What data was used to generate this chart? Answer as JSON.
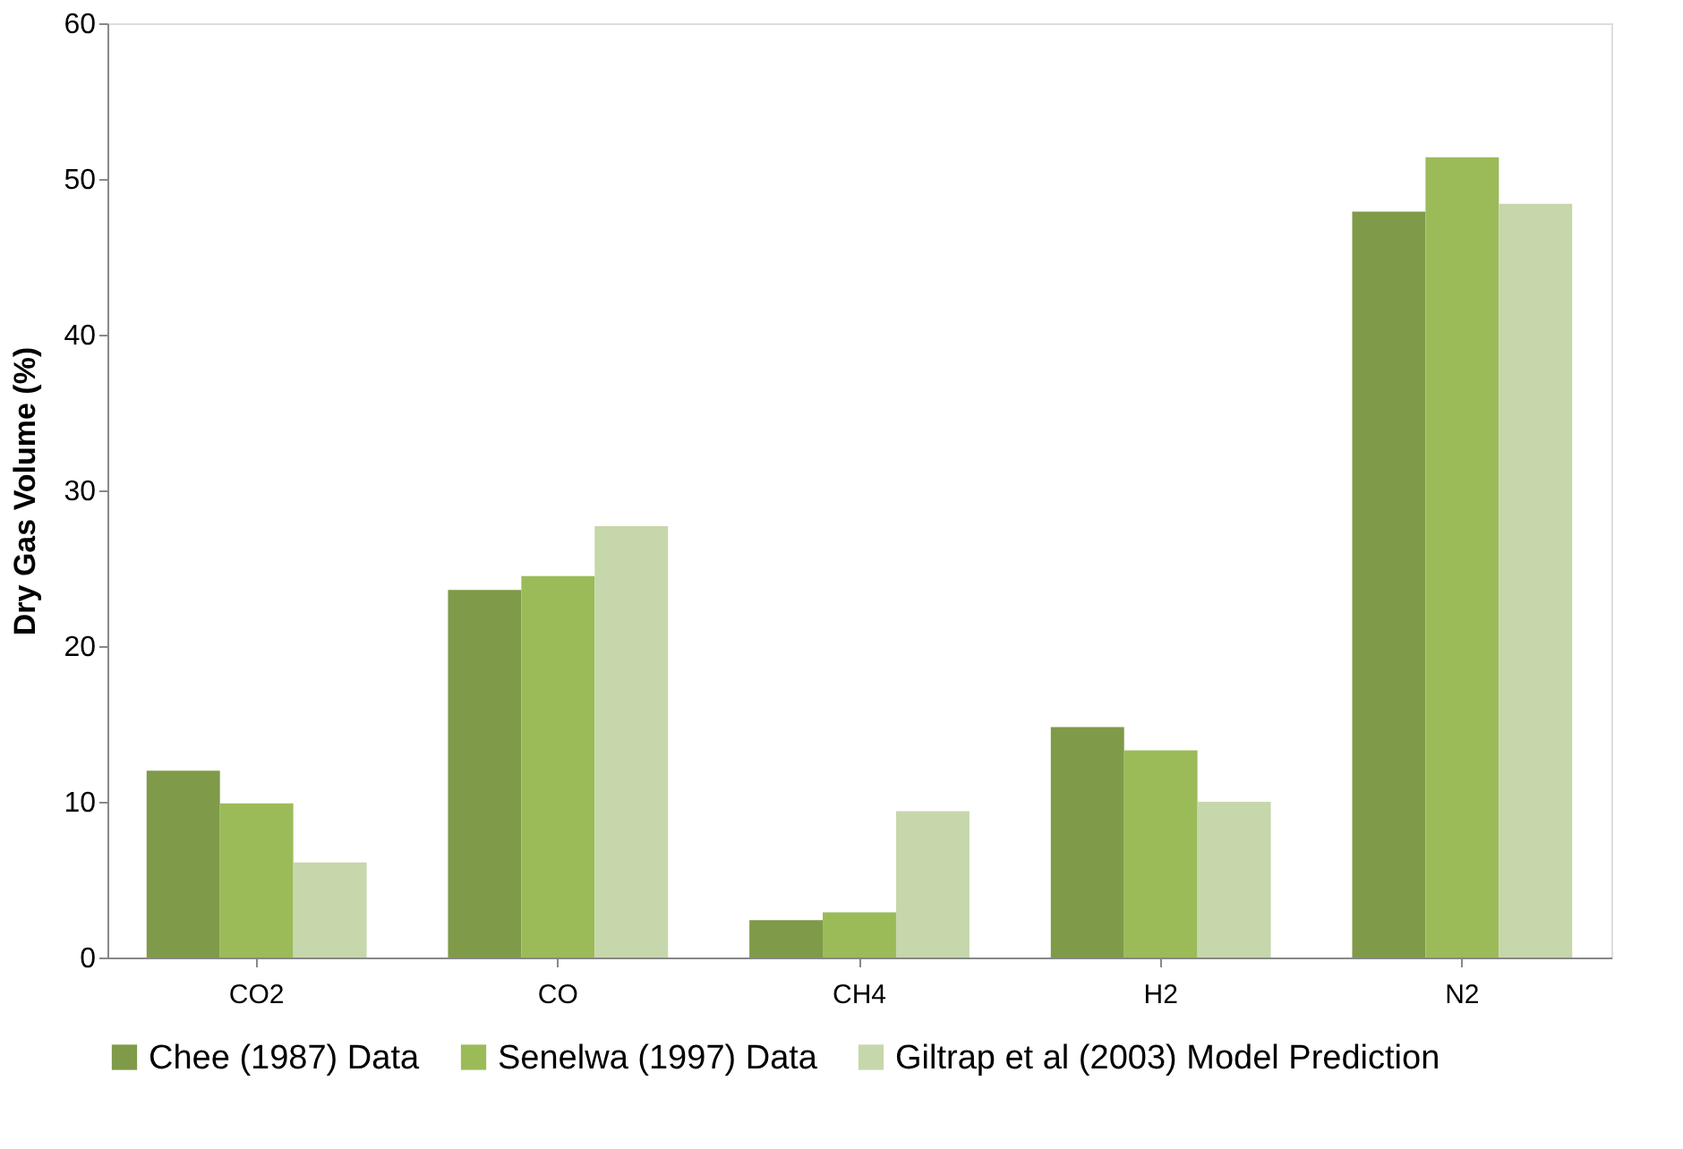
{
  "chart_data": {
    "type": "bar",
    "ylabel": "Dry Gas Volume (%)",
    "categories": [
      "CO2",
      "CO",
      "CH4",
      "H2",
      "N2"
    ],
    "series": [
      {
        "name": "Chee (1987) Data",
        "color": "#7f9a48",
        "values": [
          12.0,
          23.6,
          2.4,
          14.8,
          47.9
        ]
      },
      {
        "name": "Senelwa (1997) Data",
        "color": "#9bbb59",
        "values": [
          9.9,
          24.5,
          2.9,
          13.3,
          51.4
        ]
      },
      {
        "name": "Giltrap et al (2003) Model Prediction",
        "color": "#c6d7ac",
        "values": [
          6.1,
          27.7,
          9.4,
          10.0,
          48.4
        ]
      }
    ],
    "ylim": [
      0,
      60
    ],
    "yticks": [
      0,
      10,
      20,
      30,
      40,
      50,
      60
    ],
    "grid": false,
    "legend": "bottom"
  }
}
